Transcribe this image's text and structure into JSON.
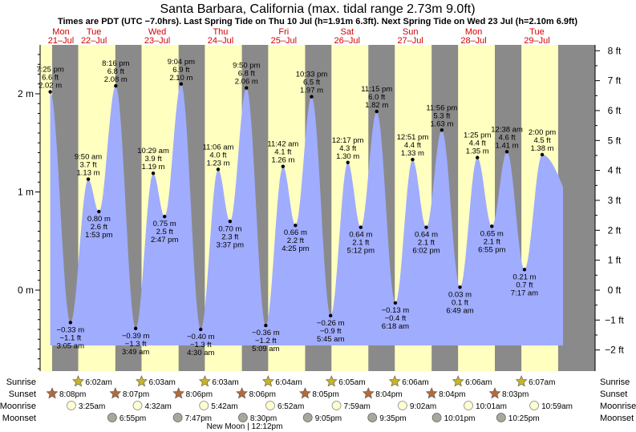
{
  "colors": {
    "day": "#ffffc0",
    "night": "#8a8a8a",
    "tide": "#a0acfd",
    "day_label": "#d40000",
    "sun_star": "#c8b428",
    "sunset_star": "#b56a3a",
    "moonrise": "#ffffd2",
    "moonset": "#a8a89a"
  },
  "header": {
    "title": "Santa Barbara, California (max. tidal range 2.73m 9.0ft)",
    "subtitle": "Times are PDT (UTC −7.0hrs). Last Spring Tide on Thu 10 Jul (h=1.91m 6.3ft). Next Spring Tide on Wed 23 Jul (h=2.10m 6.9ft)"
  },
  "days": [
    {
      "name": "Mon",
      "date": "21–Jul"
    },
    {
      "name": "Tue",
      "date": "22–Jul"
    },
    {
      "name": "Wed",
      "date": "23–Jul"
    },
    {
      "name": "Thu",
      "date": "24–Jul"
    },
    {
      "name": "Fri",
      "date": "25–Jul"
    },
    {
      "name": "Sat",
      "date": "26–Jul"
    },
    {
      "name": "Sun",
      "date": "27–Jul"
    },
    {
      "name": "Mon",
      "date": "28–Jul"
    },
    {
      "name": "Tue",
      "date": "29–Jul"
    }
  ],
  "chart_data": {
    "type": "area",
    "ylim_m": [
      -2.6,
      2.55
    ],
    "left_ticks": [
      "2 m",
      "1 m",
      "0 m"
    ],
    "left_tick_values": [
      2,
      1,
      0
    ],
    "right_ticks": [
      "8 ft",
      "7 ft",
      "6 ft",
      "5 ft",
      "4 ft",
      "3 ft",
      "2 ft",
      "1 ft",
      "0 ft",
      "−1 ft",
      "−2 ft"
    ],
    "right_tick_values": [
      8,
      7,
      6,
      5,
      4,
      3,
      2,
      1,
      0,
      -1,
      -2
    ],
    "tides": [
      {
        "day": 0,
        "time": "7:25 pm",
        "m": "2.02 m",
        "ft": "6.6 ft",
        "h": 2.02,
        "type": "high"
      },
      {
        "day": 1,
        "time": "3:05 am",
        "m": "−0.33 m",
        "ft": "−1.1 ft",
        "h": -0.33,
        "type": "low"
      },
      {
        "day": 1,
        "time": "9:50 am",
        "m": "1.13 m",
        "ft": "3.7 ft",
        "h": 1.13,
        "type": "high"
      },
      {
        "day": 1,
        "time": "1:53 pm",
        "m": "0.80 m",
        "ft": "2.6 ft",
        "h": 0.8,
        "type": "low"
      },
      {
        "day": 1,
        "time": "8:16 pm",
        "m": "2.08 m",
        "ft": "6.8 ft",
        "h": 2.08,
        "type": "high"
      },
      {
        "day": 2,
        "time": "3:49 am",
        "m": "−0.39 m",
        "ft": "−1.3 ft",
        "h": -0.39,
        "type": "low"
      },
      {
        "day": 2,
        "time": "10:29 am",
        "m": "1.19 m",
        "ft": "3.9 ft",
        "h": 1.19,
        "type": "high"
      },
      {
        "day": 2,
        "time": "2:47 pm",
        "m": "0.75 m",
        "ft": "2.5 ft",
        "h": 0.75,
        "type": "low"
      },
      {
        "day": 2,
        "time": "9:04 pm",
        "m": "2.10 m",
        "ft": "6.9 ft",
        "h": 2.1,
        "type": "high"
      },
      {
        "day": 3,
        "time": "4:30 am",
        "m": "−0.40 m",
        "ft": "−1.3 ft",
        "h": -0.4,
        "type": "low"
      },
      {
        "day": 3,
        "time": "11:06 am",
        "m": "1.23 m",
        "ft": "4.0 ft",
        "h": 1.23,
        "type": "high"
      },
      {
        "day": 3,
        "time": "3:37 pm",
        "m": "0.70 m",
        "ft": "2.3 ft",
        "h": 0.7,
        "type": "low"
      },
      {
        "day": 3,
        "time": "9:50 pm",
        "m": "2.06 m",
        "ft": "6.8 ft",
        "h": 2.06,
        "type": "high"
      },
      {
        "day": 4,
        "time": "5:09 am",
        "m": "−0.36 m",
        "ft": "−1.2 ft",
        "h": -0.36,
        "type": "low"
      },
      {
        "day": 4,
        "time": "11:42 am",
        "m": "1.26 m",
        "ft": "4.1 ft",
        "h": 1.26,
        "type": "high"
      },
      {
        "day": 4,
        "time": "4:25 pm",
        "m": "0.66 m",
        "ft": "2.2 ft",
        "h": 0.66,
        "type": "low"
      },
      {
        "day": 4,
        "time": "10:33 pm",
        "m": "1.97 m",
        "ft": "6.5 ft",
        "h": 1.97,
        "type": "high"
      },
      {
        "day": 5,
        "time": "5:45 am",
        "m": "−0.26 m",
        "ft": "−0.9 ft",
        "h": -0.26,
        "type": "low"
      },
      {
        "day": 5,
        "time": "12:17 pm",
        "m": "1.30 m",
        "ft": "4.3 ft",
        "h": 1.3,
        "type": "high"
      },
      {
        "day": 5,
        "time": "5:12 pm",
        "m": "0.64 m",
        "ft": "2.1 ft",
        "h": 0.64,
        "type": "low"
      },
      {
        "day": 5,
        "time": "11:15 pm",
        "m": "1.82 m",
        "ft": "6.0 ft",
        "h": 1.82,
        "type": "high"
      },
      {
        "day": 6,
        "time": "6:18 am",
        "m": "−0.13 m",
        "ft": "−0.4 ft",
        "h": -0.13,
        "type": "low"
      },
      {
        "day": 6,
        "time": "12:51 pm",
        "m": "1.33 m",
        "ft": "4.4 ft",
        "h": 1.33,
        "type": "high"
      },
      {
        "day": 6,
        "time": "6:02 pm",
        "m": "0.64 m",
        "ft": "2.1 ft",
        "h": 0.64,
        "type": "low"
      },
      {
        "day": 6,
        "time": "11:56 pm",
        "m": "1.63 m",
        "ft": "5.3 ft",
        "h": 1.63,
        "type": "high"
      },
      {
        "day": 7,
        "time": "6:49 am",
        "m": "0.03 m",
        "ft": "0.1 ft",
        "h": 0.03,
        "type": "low"
      },
      {
        "day": 7,
        "time": "1:25 pm",
        "m": "1.35 m",
        "ft": "4.4 ft",
        "h": 1.35,
        "type": "high"
      },
      {
        "day": 7,
        "time": "6:55 pm",
        "m": "0.65 m",
        "ft": "2.1 ft",
        "h": 0.65,
        "type": "low"
      },
      {
        "day": 8,
        "time": "12:38 am",
        "m": "1.41 m",
        "ft": "4.6 ft",
        "h": 1.41,
        "type": "high"
      },
      {
        "day": 8,
        "time": "7:17 am",
        "m": "0.21 m",
        "ft": "0.7 ft",
        "h": 0.21,
        "type": "low"
      },
      {
        "day": 8,
        "time": "2:00 pm",
        "m": "1.38 m",
        "ft": "4.5 ft",
        "h": 1.38,
        "type": "high"
      }
    ]
  },
  "rows": {
    "labels": [
      "Sunrise",
      "Sunset",
      "Moonrise",
      "Moonset"
    ],
    "sunrise": [
      {
        "day": 1,
        "time": "6:02am"
      },
      {
        "day": 2,
        "time": "6:03am"
      },
      {
        "day": 3,
        "time": "6:03am"
      },
      {
        "day": 4,
        "time": "6:04am"
      },
      {
        "day": 5,
        "time": "6:05am"
      },
      {
        "day": 6,
        "time": "6:06am"
      },
      {
        "day": 7,
        "time": "6:06am"
      },
      {
        "day": 8,
        "time": "6:07am"
      }
    ],
    "sunset": [
      {
        "day": 0,
        "time": "8:08pm"
      },
      {
        "day": 1,
        "time": "8:07pm"
      },
      {
        "day": 2,
        "time": "8:06pm"
      },
      {
        "day": 3,
        "time": "8:06pm"
      },
      {
        "day": 4,
        "time": "8:05pm"
      },
      {
        "day": 5,
        "time": "8:04pm"
      },
      {
        "day": 6,
        "time": "8:04pm"
      },
      {
        "day": 7,
        "time": "8:03pm"
      }
    ],
    "moonrise": [
      {
        "day": 1,
        "time": "3:25am"
      },
      {
        "day": 2,
        "time": "4:32am"
      },
      {
        "day": 3,
        "time": "5:42am"
      },
      {
        "day": 4,
        "time": "6:52am"
      },
      {
        "day": 5,
        "time": "7:59am"
      },
      {
        "day": 6,
        "time": "9:02am"
      },
      {
        "day": 7,
        "time": "10:01am"
      },
      {
        "day": 8,
        "time": "10:59am"
      }
    ],
    "moonset": [
      {
        "day": 1,
        "time": "6:55pm"
      },
      {
        "day": 2,
        "time": "7:47pm"
      },
      {
        "day": 3,
        "time": "8:30pm"
      },
      {
        "day": 4,
        "time": "9:05pm"
      },
      {
        "day": 5,
        "time": "9:35pm"
      },
      {
        "day": 6,
        "time": "10:01pm"
      },
      {
        "day": 7,
        "time": "10:25pm"
      }
    ],
    "new_moon": "New Moon | 12:12pm"
  }
}
